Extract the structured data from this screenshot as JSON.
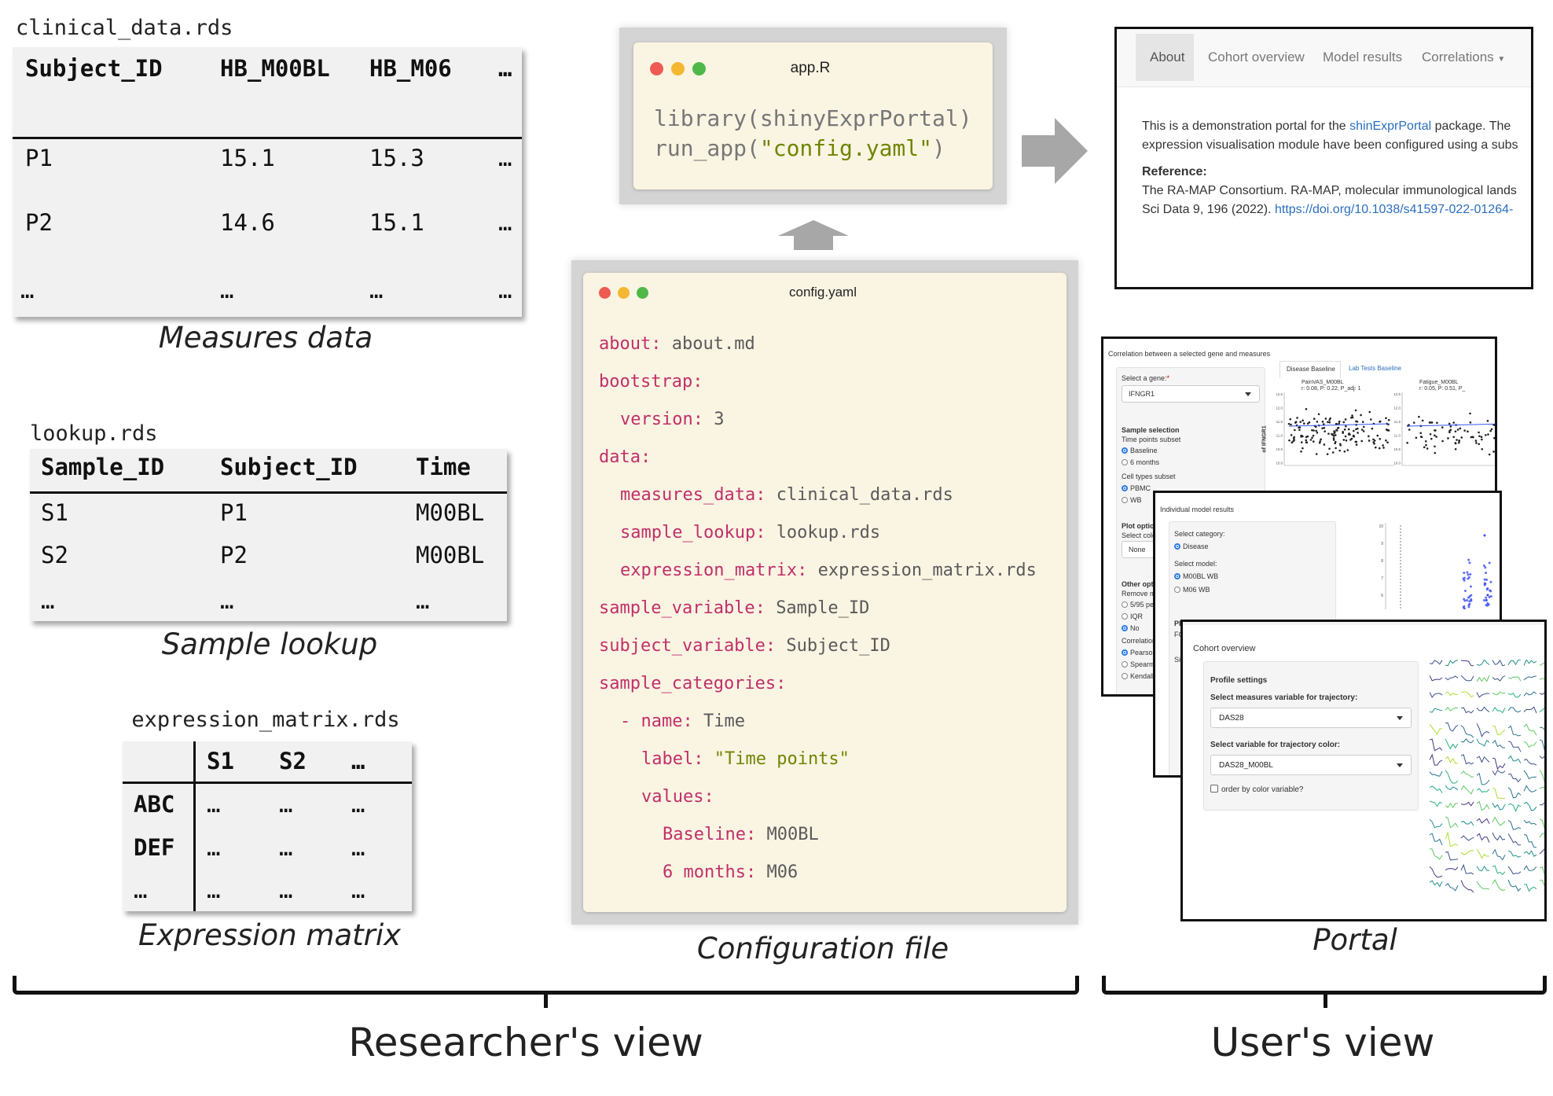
{
  "measures": {
    "filename": "clinical_data.rds",
    "headers": [
      "Subject_ID",
      "HB_M00BL",
      "HB_M06",
      "…"
    ],
    "rows": [
      [
        "P1",
        "15.1",
        "15.3",
        "…"
      ],
      [
        "P2",
        "14.6",
        "15.1",
        "…"
      ],
      [
        "…",
        "…",
        "…",
        "…"
      ]
    ],
    "caption": "Measures data"
  },
  "lookup": {
    "filename": "lookup.rds",
    "headers": [
      "Sample_ID",
      "Subject_ID",
      "Time"
    ],
    "rows": [
      [
        "S1",
        "P1",
        "M00BL"
      ],
      [
        "S2",
        "P2",
        "M00BL"
      ],
      [
        "…",
        "…",
        "…"
      ]
    ],
    "caption": "Sample lookup"
  },
  "expression": {
    "filename": "expression_matrix.rds",
    "headers": [
      "",
      "S1",
      "S2",
      "…"
    ],
    "rows": [
      [
        "ABC",
        "…",
        "…",
        "…"
      ],
      [
        "DEF",
        "…",
        "…",
        "…"
      ],
      [
        "…",
        "…",
        "…",
        "…"
      ]
    ],
    "caption": "Expression matrix"
  },
  "app_window": {
    "title": "app.R",
    "line1": "library(shinyExprPortal)",
    "line2_fn": "run_app(",
    "line2_arg": "\"config.yaml\"",
    "line2_end": ")"
  },
  "config_window": {
    "title": "config.yaml",
    "caption": "Configuration file",
    "lines": [
      {
        "indent": 0,
        "dash": "",
        "key": "about",
        "value": "about.md",
        "string": false
      },
      {
        "indent": 0,
        "dash": "",
        "key": "bootstrap",
        "value": "",
        "string": false
      },
      {
        "indent": 1,
        "dash": "",
        "key": "version",
        "value": "3",
        "string": false
      },
      {
        "indent": 0,
        "dash": "",
        "key": "data",
        "value": "",
        "string": false
      },
      {
        "indent": 1,
        "dash": "",
        "key": "measures_data",
        "value": "clinical_data.rds",
        "string": false
      },
      {
        "indent": 1,
        "dash": "",
        "key": "sample_lookup",
        "value": "lookup.rds",
        "string": false
      },
      {
        "indent": 1,
        "dash": "",
        "key": "expression_matrix",
        "value": "expression_matrix.rds",
        "string": false
      },
      {
        "indent": 0,
        "dash": "",
        "key": "sample_variable",
        "value": "Sample_ID",
        "string": false
      },
      {
        "indent": 0,
        "dash": "",
        "key": "subject_variable",
        "value": "Subject_ID",
        "string": false
      },
      {
        "indent": 0,
        "dash": "",
        "key": "sample_categories",
        "value": "",
        "string": false
      },
      {
        "indent": 1,
        "dash": "- ",
        "key": "name",
        "value": "Time",
        "string": false
      },
      {
        "indent": 2,
        "dash": "",
        "key": "label",
        "value": "\"Time points\"",
        "string": true
      },
      {
        "indent": 2,
        "dash": "",
        "key": "values",
        "value": "",
        "string": false
      },
      {
        "indent": 3,
        "dash": "",
        "key": "Baseline",
        "value": "M00BL",
        "string": false
      },
      {
        "indent": 3,
        "dash": "",
        "key": "6 months",
        "value": "M06",
        "string": false
      }
    ]
  },
  "about_page": {
    "nav": [
      "About",
      "Cohort overview",
      "Model results",
      "Correlations"
    ],
    "active_tab": "About",
    "intro_pre": "This is a demonstration portal for the ",
    "intro_link": "shinExprPortal",
    "intro_post": " package. The",
    "intro_line2": "expression visualisation module have been configured using a subs",
    "reference_label": "Reference:",
    "ref_line1": "The RA-MAP Consortium. RA-MAP, molecular immunological lands",
    "ref_line2_pre": "Sci Data 9, 196 (2022). ",
    "ref_link": "https://doi.org/10.1038/s41597-022-01264-"
  },
  "correlation_page": {
    "title": "Correlation between a selected gene and measures",
    "gene_label": "Select a gene:",
    "gene_value": "IFNGR1",
    "sample_selection": "Sample selection",
    "time_subset": "Time points subset",
    "time_options": [
      {
        "label": "Baseline",
        "checked": true
      },
      {
        "label": "6 months",
        "checked": false
      }
    ],
    "cell_subset": "Cell types subset",
    "cell_options": [
      {
        "label": "PBMC",
        "checked": true
      },
      {
        "label": "WB",
        "checked": false
      }
    ],
    "plot_options": "Plot option",
    "select_color": "Select colo",
    "color_value": "None",
    "other_options": "Other opti",
    "remove": "Remove m",
    "remove_options": [
      {
        "label": "5/95 pe",
        "checked": false
      },
      {
        "label": "IQR",
        "checked": false
      },
      {
        "label": "No",
        "checked": true
      }
    ],
    "correlation": "Correlation",
    "corr_options": [
      {
        "label": "Pearson",
        "checked": true
      },
      {
        "label": "Spearm",
        "checked": false
      },
      {
        "label": "Kendall",
        "checked": false
      }
    ],
    "tabs": [
      "Disease Baseline",
      "Lab Tests Baseline"
    ],
    "plot1_title": "PainVAS_M00BL",
    "plot1_stats": "r: 0.08, P: 0.22, P_adj: 1",
    "plot2_title": "Fatigue_M00BL",
    "plot2_stats": "r: 0.05, P: 0.51, P_",
    "ylabel": "of IFNGR1",
    "yticks": [
      "12.5",
      "12.0",
      "11.5",
      "11.0",
      "10.5",
      "10.0"
    ],
    "xticks": [
      "0",
      "20",
      "40",
      "60",
      "80",
      "100"
    ],
    "point_color": "#222222",
    "fit_color": "#3355ee"
  },
  "model_page": {
    "title": "Individual model results",
    "category_label": "Select category:",
    "category_options": [
      {
        "label": "Disease",
        "checked": true
      }
    ],
    "model_label": "Select model:",
    "model_options": [
      {
        "label": "M00BL WB",
        "checked": true
      },
      {
        "label": "M06 WB",
        "checked": false
      }
    ],
    "plot_options": "Plot opti",
    "fc": "FC",
    "sig": "Si",
    "yticks": [
      "10",
      "9",
      "8",
      "7",
      "6"
    ],
    "point_color": "#3b4cf5"
  },
  "cohort_page": {
    "title": "Cohort overview",
    "panel_title": "Profile settings",
    "measure_label": "Select measures variable for trajectory:",
    "measure_value": "DAS28",
    "color_label": "Select variable for trajectory color:",
    "color_value": "DAS28_M00BL",
    "order_label": "order by color variable?",
    "order_checked": false,
    "palette": [
      "#3b528b",
      "#21918c",
      "#5ec962",
      "#2c728e",
      "#28ae80",
      "#addc30",
      "#443983"
    ]
  },
  "portal_caption": "Portal",
  "researcher_view": "Researcher's view",
  "user_view": "User's view"
}
